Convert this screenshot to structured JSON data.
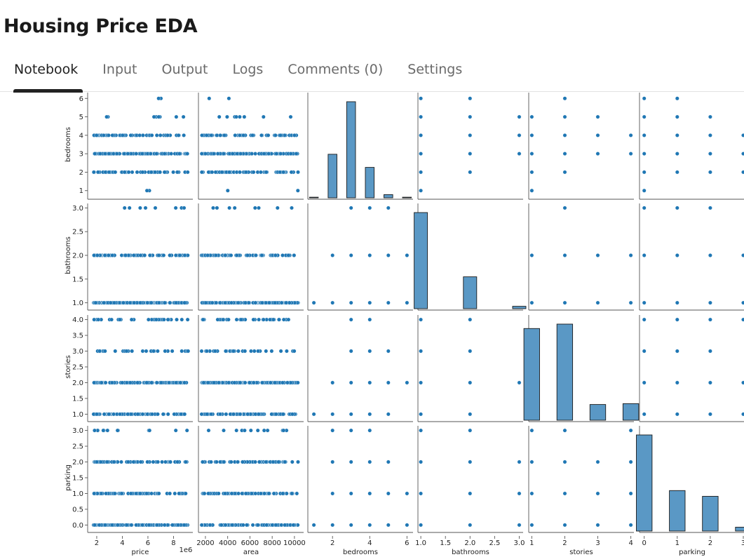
{
  "page": {
    "title": "Housing Price EDA"
  },
  "tabs": [
    {
      "label": "Notebook",
      "active": true
    },
    {
      "label": "Input",
      "active": false
    },
    {
      "label": "Output",
      "active": false
    },
    {
      "label": "Logs",
      "active": false
    },
    {
      "label": "Comments (0)",
      "active": false
    },
    {
      "label": "Settings",
      "active": false
    }
  ],
  "chart_data": {
    "type": "scatter",
    "kind": "pairplot",
    "point_color": "#1f77b4",
    "grid": false,
    "x_variables": [
      "price",
      "area",
      "bedrooms",
      "bathrooms",
      "stories",
      "parking"
    ],
    "y_variables": [
      "bedrooms",
      "bathrooms",
      "stories",
      "parking"
    ],
    "x_axes": [
      {
        "label": "price",
        "range": [
          1400000,
          9400000
        ],
        "ticks": [
          2,
          4,
          6,
          8
        ],
        "tick_scale": 1000000,
        "offset_text": "1e6"
      },
      {
        "label": "area",
        "range": [
          1500,
          10700
        ],
        "ticks": [
          2000,
          4000,
          6000,
          8000,
          10000
        ]
      },
      {
        "label": "bedrooms",
        "range": [
          0.75,
          6.25
        ],
        "ticks": [
          2,
          4,
          6
        ]
      },
      {
        "label": "bathrooms",
        "range": [
          0.97,
          3.05
        ],
        "ticks": [
          "1.0",
          "1.5",
          "2.0",
          "2.5",
          "3.0"
        ]
      },
      {
        "label": "stories",
        "range": [
          0.95,
          4.05
        ],
        "ticks": [
          1,
          2,
          3,
          4
        ]
      },
      {
        "label": "parking",
        "range": [
          -0.1,
          3.0
        ],
        "ticks": [
          0,
          1,
          2,
          3
        ]
      }
    ],
    "y_axes": [
      {
        "label": "bedrooms",
        "range": [
          0.8,
          6.2
        ],
        "ticks": [
          1,
          2,
          3,
          4,
          5,
          6
        ]
      },
      {
        "label": "bathrooms",
        "range": [
          0.95,
          3.05
        ],
        "ticks": [
          "1.0",
          "1.5",
          "2.0",
          "2.5",
          "3.0"
        ]
      },
      {
        "label": "stories",
        "range": [
          0.92,
          4.08
        ],
        "ticks": [
          "1.0",
          "1.5",
          "2.0",
          "2.5",
          "3.0",
          "3.5",
          "4.0"
        ]
      },
      {
        "label": "parking",
        "range": [
          -0.08,
          3.08
        ],
        "ticks": [
          "0.0",
          "0.5",
          "1.0",
          "1.5",
          "2.0",
          "2.5",
          "3.0"
        ]
      }
    ],
    "diagonal_histograms": [
      {
        "variable": "bedrooms",
        "bins": [
          1,
          2,
          3,
          4,
          5,
          6
        ],
        "counts": [
          2,
          136,
          300,
          95,
          10,
          2
        ]
      },
      {
        "variable": "bathrooms",
        "bins": [
          1,
          2,
          3
        ],
        "counts": [
          401,
          133,
          10
        ]
      },
      {
        "variable": "stories",
        "bins": [
          1,
          2,
          3,
          4
        ],
        "counts": [
          227,
          238,
          39,
          41
        ]
      },
      {
        "variable": "parking",
        "bins": [
          0,
          1,
          2,
          3
        ],
        "counts": [
          299,
          126,
          108,
          12
        ]
      }
    ],
    "pair_points": {
      "bedrooms_bathrooms": [
        [
          1,
          1
        ],
        [
          2,
          1
        ],
        [
          2,
          2
        ],
        [
          3,
          1
        ],
        [
          3,
          2
        ],
        [
          3,
          3
        ],
        [
          4,
          1
        ],
        [
          4,
          2
        ],
        [
          4,
          3
        ],
        [
          5,
          1
        ],
        [
          5,
          2
        ],
        [
          5,
          3
        ],
        [
          6,
          1
        ],
        [
          6,
          2
        ]
      ],
      "bedrooms_stories": [
        [
          1,
          1
        ],
        [
          2,
          1
        ],
        [
          2,
          2
        ],
        [
          3,
          1
        ],
        [
          3,
          2
        ],
        [
          3,
          3
        ],
        [
          3,
          4
        ],
        [
          4,
          1
        ],
        [
          4,
          2
        ],
        [
          4,
          3
        ],
        [
          4,
          4
        ],
        [
          5,
          1
        ],
        [
          5,
          2
        ],
        [
          5,
          3
        ],
        [
          6,
          2
        ]
      ],
      "bedrooms_parking": [
        [
          1,
          0
        ],
        [
          2,
          0
        ],
        [
          2,
          1
        ],
        [
          2,
          2
        ],
        [
          2,
          3
        ],
        [
          3,
          0
        ],
        [
          3,
          1
        ],
        [
          3,
          2
        ],
        [
          3,
          3
        ],
        [
          4,
          0
        ],
        [
          4,
          1
        ],
        [
          4,
          2
        ],
        [
          4,
          3
        ],
        [
          5,
          0
        ],
        [
          5,
          1
        ],
        [
          5,
          2
        ],
        [
          6,
          0
        ],
        [
          6,
          1
        ]
      ],
      "bathrooms_stories": [
        [
          1,
          1
        ],
        [
          1,
          2
        ],
        [
          1,
          3
        ],
        [
          1,
          4
        ],
        [
          2,
          1
        ],
        [
          2,
          2
        ],
        [
          2,
          3
        ],
        [
          2,
          4
        ],
        [
          3,
          2
        ]
      ],
      "bathrooms_parking": [
        [
          1,
          0
        ],
        [
          1,
          1
        ],
        [
          1,
          2
        ],
        [
          1,
          3
        ],
        [
          2,
          0
        ],
        [
          2,
          1
        ],
        [
          2,
          2
        ],
        [
          2,
          3
        ],
        [
          3,
          0
        ],
        [
          3,
          1
        ],
        [
          3,
          2
        ]
      ],
      "stories_parking": [
        [
          1,
          0
        ],
        [
          1,
          1
        ],
        [
          1,
          2
        ],
        [
          1,
          3
        ],
        [
          2,
          0
        ],
        [
          2,
          1
        ],
        [
          2,
          2
        ],
        [
          2,
          3
        ],
        [
          3,
          0
        ],
        [
          3,
          1
        ],
        [
          3,
          2
        ],
        [
          4,
          0
        ],
        [
          4,
          1
        ],
        [
          4,
          2
        ],
        [
          4,
          3
        ]
      ]
    }
  }
}
